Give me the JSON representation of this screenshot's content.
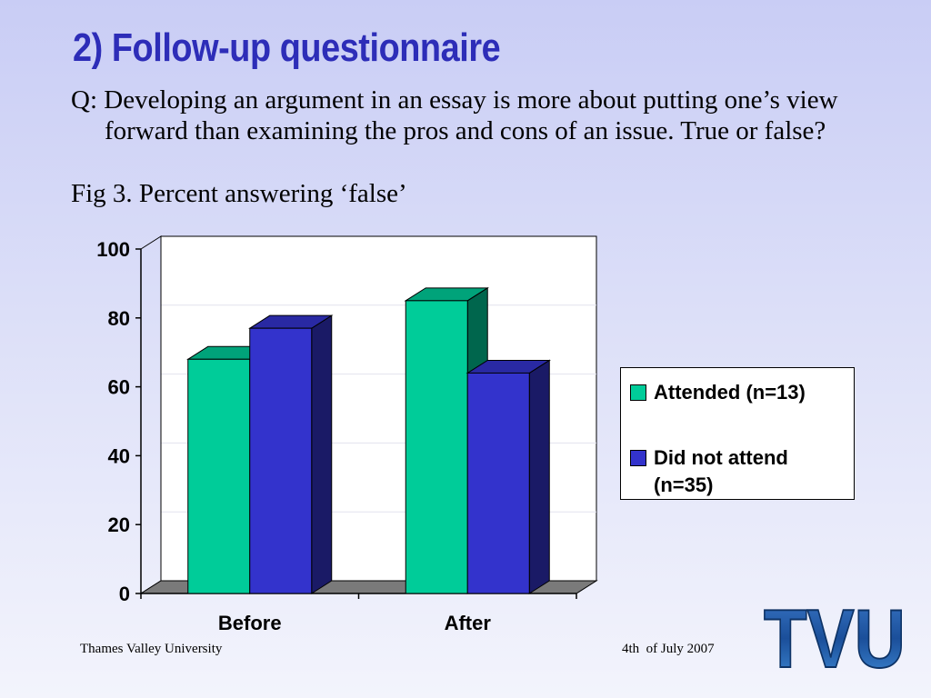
{
  "slide": {
    "title": "2) Follow-up questionnaire",
    "question": "Q: Developing an argument in an essay is more about putting one’s view forward than examining the pros and cons of an issue. True or false?",
    "caption": "Fig 3. Percent answering ‘false’"
  },
  "footer": {
    "left": "Thames Valley University",
    "right": "4th  of July 2007",
    "logo_text": "TVU"
  },
  "colors": {
    "attended": "#00cc99",
    "did_not_attend": "#3333cc",
    "floor": "#7a7a7a"
  },
  "chart_data": {
    "type": "bar",
    "title": "",
    "xlabel": "",
    "ylabel": "",
    "categories": [
      "Before",
      "After"
    ],
    "series": [
      {
        "name": "Attended (n=13)",
        "values": [
          68,
          85
        ]
      },
      {
        "name": "Did not attend (n=35)",
        "values": [
          77,
          64
        ]
      }
    ],
    "ylim": [
      0,
      100
    ],
    "yticks": [
      "0",
      "20",
      "40",
      "60",
      "80",
      "100"
    ],
    "grid": true,
    "style": "3d",
    "legend": "right"
  }
}
